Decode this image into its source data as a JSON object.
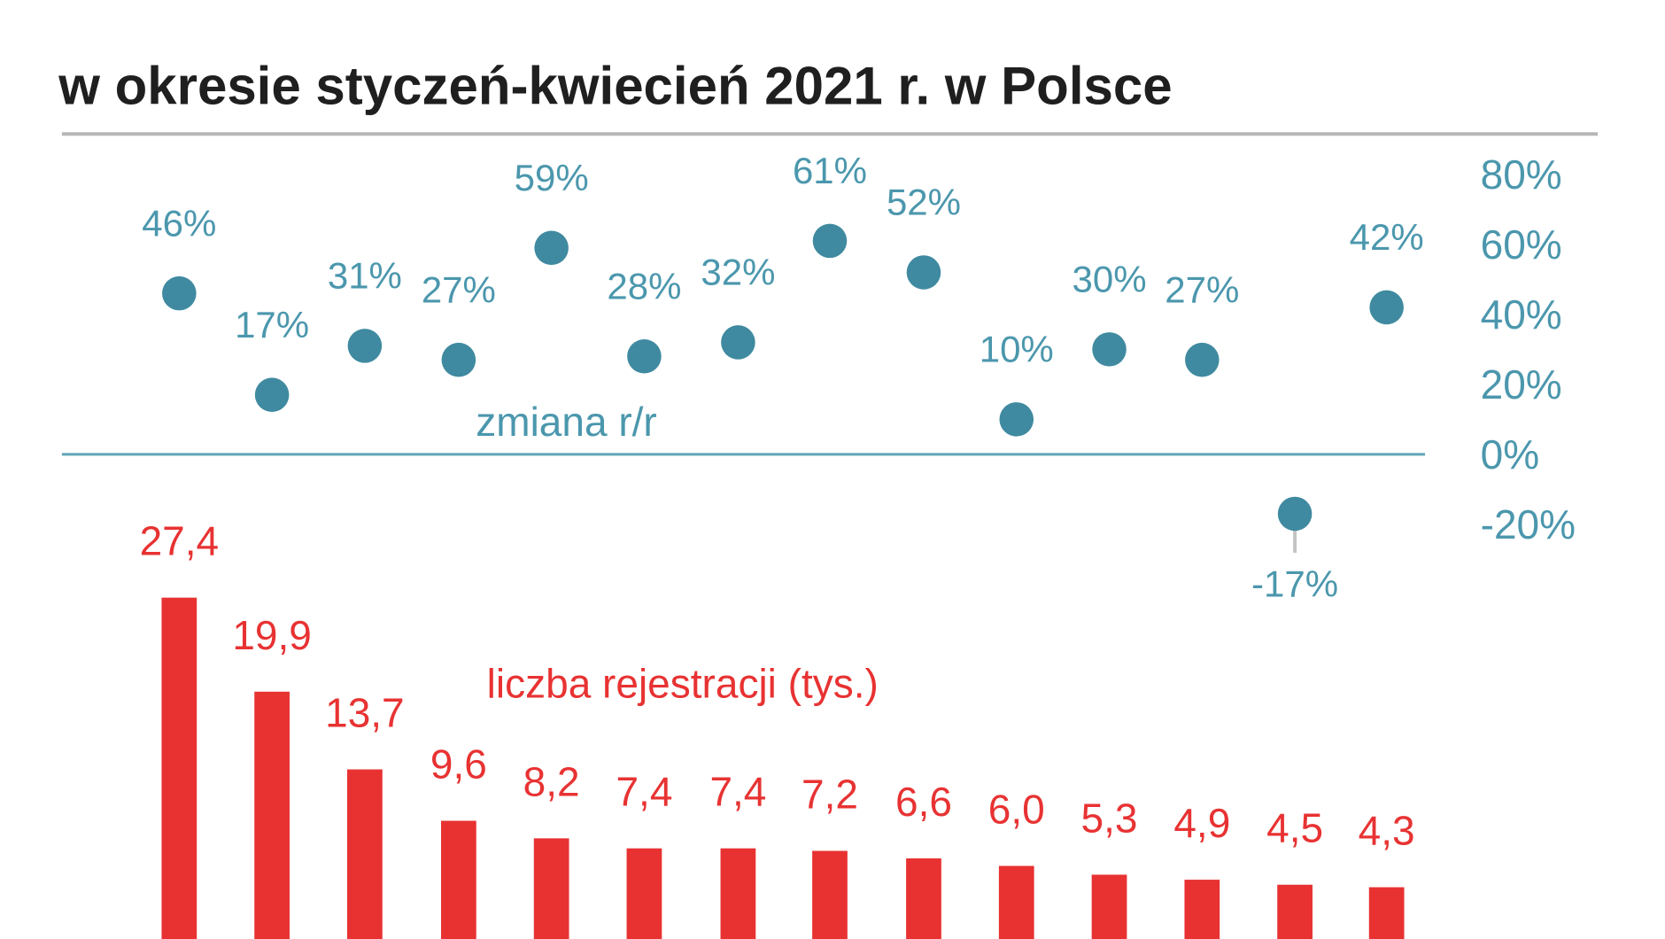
{
  "chart_data": {
    "type": "bar+scatter",
    "title": "w okresie styczeń-kwiecień 2021 r. w Polsce",
    "title_partial_top": "",
    "colors": {
      "bars": "#e83232",
      "dots": "#3f8aa0",
      "dot_labels": "#4b97ad",
      "axis_line": "#5fa6b8",
      "title": "#1f1f1f",
      "divider": "#b7b7b7"
    },
    "secondary_axis": {
      "ticks": [
        "80%",
        "60%",
        "40%",
        "20%",
        "0%",
        "-20%"
      ],
      "range": [
        -20,
        80
      ]
    },
    "categories": [
      "",
      "",
      "",
      "",
      "",
      "",
      "",
      "",
      "",
      "",
      "",
      "",
      "",
      ""
    ],
    "series": [
      {
        "name": "liczba rejestracji (tys.)",
        "values": [
          27.4,
          19.9,
          13.7,
          9.6,
          8.2,
          7.4,
          7.4,
          7.2,
          6.6,
          6.0,
          5.3,
          4.9,
          4.5,
          4.3
        ],
        "labels": [
          "27,4",
          "19,9",
          "13,7",
          "9,6",
          "8,2",
          "7,4",
          "7,4",
          "7,2",
          "6,6",
          "6,0",
          "5,3",
          "4,9",
          "4,5",
          "4,3"
        ]
      },
      {
        "name": "zmiana r/r",
        "values": [
          46,
          17,
          31,
          27,
          59,
          28,
          32,
          61,
          52,
          10,
          30,
          27,
          -17,
          42
        ],
        "labels": [
          "46%",
          "17%",
          "31%",
          "27%",
          "59%",
          "28%",
          "32%",
          "61%",
          "52%",
          "10%",
          "30%",
          "27%",
          "-17%",
          "42%"
        ]
      }
    ]
  }
}
